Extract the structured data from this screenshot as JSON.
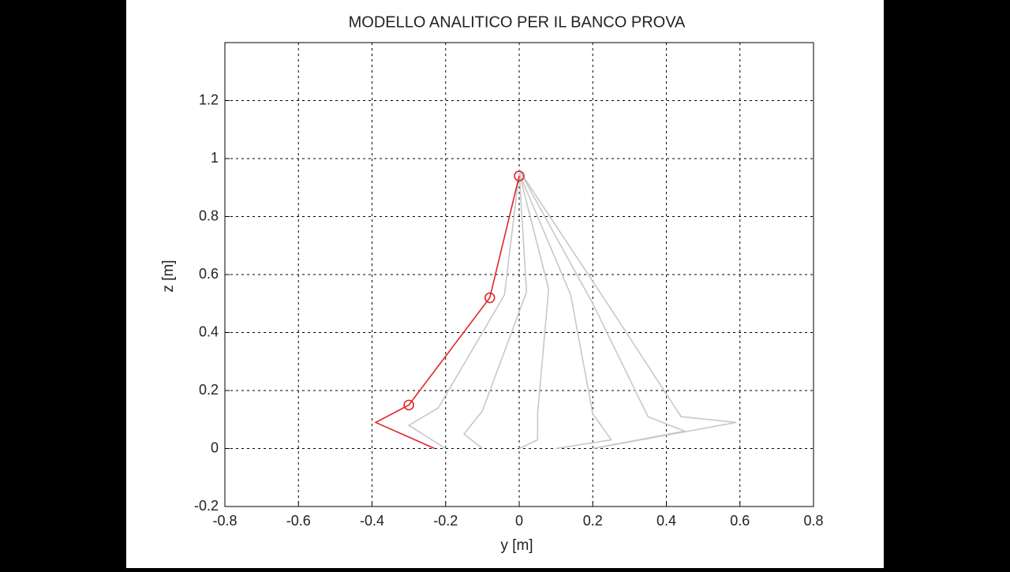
{
  "chart_data": {
    "type": "line",
    "title": "MODELLO ANALITICO PER IL BANCO PROVA",
    "x_label": "y [m]",
    "y_label": "z [m]",
    "xlim": [
      -0.8,
      0.8
    ],
    "xticks": [
      -0.8,
      -0.6,
      -0.4,
      -0.2,
      0,
      0.2,
      0.4,
      0.6,
      0.8
    ],
    "ylim": [
      -0.2,
      1.4
    ],
    "yticks": [
      -0.2,
      0,
      0.2,
      0.4,
      0.6,
      0.8,
      1,
      1.2
    ],
    "grid": true,
    "series": [
      {
        "color": "#c8c8c8",
        "x": [
          -0.2,
          -0.3,
          -0.22,
          -0.04,
          0
        ],
        "values": [
          0,
          0.08,
          0.14,
          0.53,
          0.95
        ]
      },
      {
        "color": "#c8c8c8",
        "x": [
          -0.1,
          -0.15,
          -0.1,
          0.02,
          0
        ],
        "values": [
          0,
          0.05,
          0.13,
          0.54,
          0.95
        ]
      },
      {
        "color": "#c8c8c8",
        "x": [
          0,
          0.05,
          0.05,
          0.08,
          0
        ],
        "values": [
          0,
          0.03,
          0.12,
          0.55,
          0.95
        ]
      },
      {
        "color": "#c8c8c8",
        "x": [
          0.1,
          0.25,
          0.2,
          0.14,
          0
        ],
        "values": [
          0,
          0.03,
          0.12,
          0.53,
          0.95
        ]
      },
      {
        "color": "#c8c8c8",
        "x": [
          0.2,
          0.45,
          0.35,
          0.2,
          0
        ],
        "values": [
          0,
          0.06,
          0.11,
          0.5,
          0.96
        ]
      },
      {
        "color": "#c8c8c8",
        "x": [
          0.2,
          0.59,
          0.44,
          0.25,
          0
        ],
        "values": [
          0,
          0.09,
          0.11,
          0.48,
          0.96
        ]
      },
      {
        "color": "#e0262b",
        "x": [
          -0.23,
          -0.39,
          -0.3,
          -0.08,
          0
        ],
        "values": [
          0,
          0.09,
          0.15,
          0.52,
          0.94
        ]
      },
      {
        "color": "#e0262b",
        "x": [
          -0.3,
          -0.08,
          0
        ],
        "values": [
          0.15,
          0.52,
          0.94
        ],
        "line": false,
        "marker": "circle"
      }
    ]
  }
}
